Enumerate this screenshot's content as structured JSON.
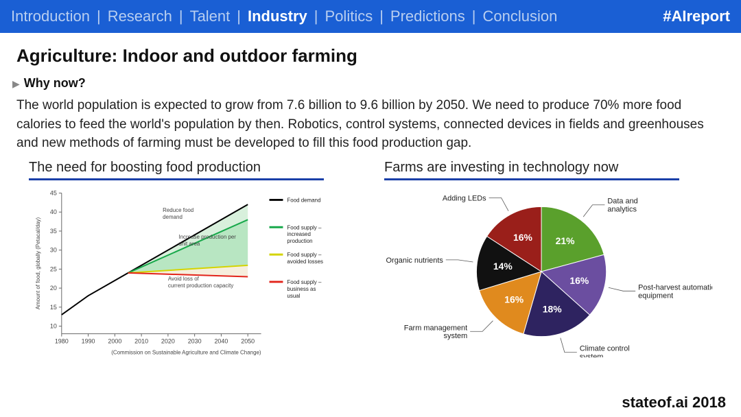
{
  "topbar": {
    "items": [
      {
        "label": "Introduction",
        "active": false
      },
      {
        "label": "Research",
        "active": false
      },
      {
        "label": "Talent",
        "active": false
      },
      {
        "label": "Industry",
        "active": true
      },
      {
        "label": "Politics",
        "active": false
      },
      {
        "label": "Predictions",
        "active": false
      },
      {
        "label": "Conclusion",
        "active": false
      }
    ],
    "hashtag": "#AIreport",
    "bg_color": "#1a5fd4",
    "inactive_color": "#b8cef0",
    "active_color": "#ffffff"
  },
  "title": "Agriculture: Indoor and outdoor farming",
  "subheading": "Why now?",
  "body": "The world population is expected to grow from 7.6 billion to 9.6 billion by 2050. We need to produce 70% more food calories to feed the world's population by then. Robotics, control systems, connected devices in fields and greenhouses and new methods of farming must be developed to fill this food production gap.",
  "footer": "stateof.ai 2018",
  "line_chart": {
    "title": "The need for boosting food production",
    "type": "line-area",
    "x_ticks": [
      1980,
      1990,
      2000,
      2010,
      2020,
      2030,
      2040,
      2050
    ],
    "y_ticks": [
      10,
      15,
      20,
      25,
      30,
      35,
      40,
      45
    ],
    "xlim": [
      1980,
      2055
    ],
    "ylim": [
      8,
      45
    ],
    "y_axis_title": "Amount of food, globally (Petacal/day)",
    "footnote": "(Commission on Sustainable Agriculture and Climate Change)",
    "axis_color": "#666666",
    "grid_color": "#e0e0e0",
    "series": {
      "demand": {
        "label": "Food demand",
        "color": "#000000",
        "points": [
          [
            1980,
            13
          ],
          [
            1990,
            18
          ],
          [
            2000,
            22
          ],
          [
            2005,
            24
          ],
          [
            2050,
            42
          ]
        ]
      },
      "supply_increased": {
        "label": "Food supply – increased production",
        "color": "#17a84a",
        "points": [
          [
            2005,
            24
          ],
          [
            2050,
            38
          ]
        ]
      },
      "supply_avoided": {
        "label": "Food supply – avoided losses",
        "color": "#d4d400",
        "points": [
          [
            2005,
            24
          ],
          [
            2050,
            26
          ]
        ]
      },
      "supply_bau": {
        "label": "Food supply – business as usual",
        "color": "#e2231a",
        "points": [
          [
            2005,
            24
          ],
          [
            2050,
            23
          ]
        ]
      }
    },
    "fills": [
      {
        "between": [
          "demand",
          "supply_increased"
        ],
        "color": "#d8f0dc"
      },
      {
        "between": [
          "supply_increased",
          "supply_avoided"
        ],
        "color": "#b8e6c2"
      },
      {
        "between": [
          "supply_avoided",
          "supply_bau"
        ],
        "color": "#f6eedd"
      }
    ],
    "in_chart_labels": [
      {
        "text": "Reduce food demand",
        "x": 2018,
        "y": 40
      },
      {
        "text": "Increase production per unit area",
        "x": 2024,
        "y": 33
      },
      {
        "text": "Avoid loss of current production capacity",
        "x": 2020,
        "y": 22
      }
    ]
  },
  "pie_chart": {
    "title": "Farms are investing in technology now",
    "type": "pie",
    "background_color": "#ffffff",
    "slices": [
      {
        "label": "Data and analytics",
        "value": 21,
        "color": "#5aa02c",
        "pct_text": "21%"
      },
      {
        "label": "Post-harvest automation equipment",
        "value": 16,
        "color": "#6b4ea0",
        "pct_text": "16%"
      },
      {
        "label": "Climate control system",
        "value": 18,
        "color": "#2e2360",
        "pct_text": "18%"
      },
      {
        "label": "Farm management system",
        "value": 16,
        "color": "#e08a1e",
        "pct_text": "16%"
      },
      {
        "label": "Organic nutrients",
        "value": 14,
        "color": "#111111",
        "pct_text": "14%"
      },
      {
        "label": "Adding LEDs",
        "value": 16,
        "color": "#9a1f1a",
        "pct_text": "16%"
      }
    ],
    "start_angle_deg": -90
  }
}
